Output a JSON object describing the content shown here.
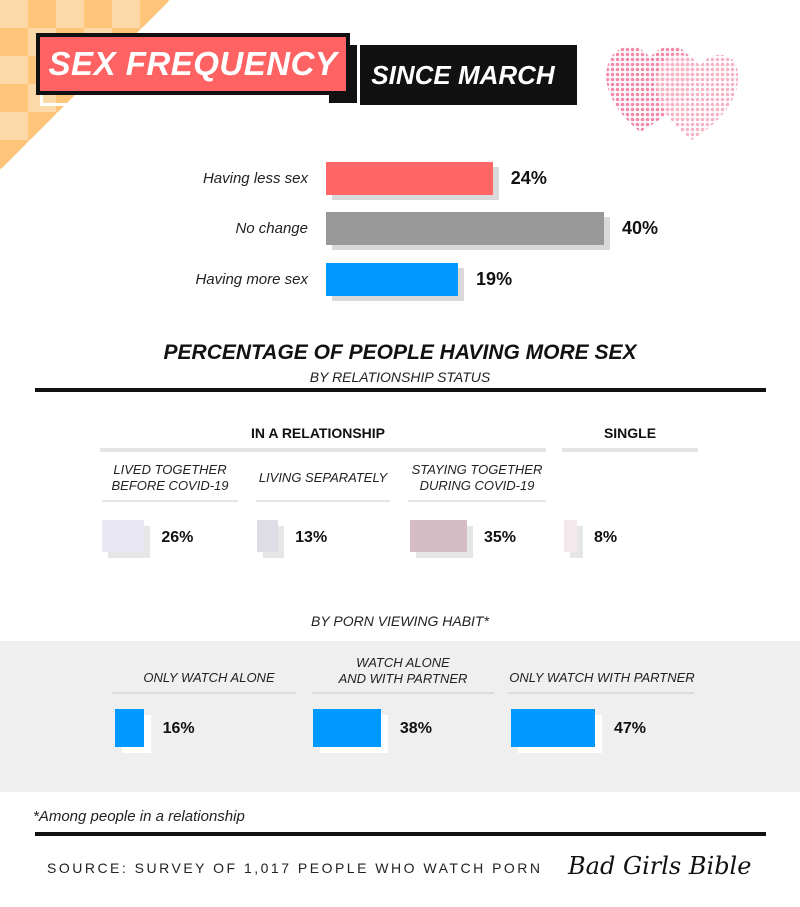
{
  "title": {
    "primary": "SEX FREQUENCY",
    "secondary": "SINCE MARCH"
  },
  "colors": {
    "less": "#ff6666",
    "no_change": "#999999",
    "more": "#0099ff",
    "lived_together": "#e9e8f2",
    "living_separately": "#dedde6",
    "staying_together": "#d6bcc4",
    "single": "#f4e8ec"
  },
  "chart_data": [
    {
      "type": "bar",
      "orientation": "horizontal",
      "categories": [
        "Having less sex",
        "No change",
        "Having more sex"
      ],
      "values": [
        24,
        40,
        19
      ],
      "value_labels": [
        "24%",
        "40%",
        "19%"
      ],
      "title": "SEX FREQUENCY SINCE MARCH"
    },
    {
      "type": "bar",
      "title": "PERCENTAGE OF PEOPLE HAVING MORE SEX",
      "subtitle": "BY RELATIONSHIP STATUS",
      "groups": [
        {
          "name": "IN A RELATIONSHIP",
          "categories": [
            "LIVED TOGETHER BEFORE COVID-19",
            "LIVING SEPARATELY",
            "STAYING TOGETHER DURING COVID-19"
          ],
          "values": [
            26,
            13,
            35
          ],
          "value_labels": [
            "26%",
            "13%",
            "35%"
          ]
        },
        {
          "name": "SINGLE",
          "categories": [
            ""
          ],
          "values": [
            8
          ],
          "value_labels": [
            "8%"
          ]
        }
      ]
    },
    {
      "type": "bar",
      "subtitle": "BY PORN VIEWING HABIT*",
      "categories": [
        "ONLY WATCH ALONE",
        "WATCH ALONE AND WITH PARTNER",
        "ONLY WATCH WITH PARTNER"
      ],
      "values": [
        16,
        38,
        47
      ],
      "value_labels": [
        "16%",
        "38%",
        "47%"
      ]
    }
  ],
  "relationship_labels": {
    "lived_l1": "LIVED TOGETHER",
    "lived_l2": "BEFORE COVID-19",
    "separately": "LIVING SEPARATELY",
    "staying_l1": "STAYING TOGETHER",
    "staying_l2": "DURING COVID-19"
  },
  "porn_labels": {
    "alone": "ONLY WATCH ALONE",
    "both_l1": "WATCH ALONE",
    "both_l2": "AND WITH PARTNER",
    "partner": "ONLY WATCH WITH PARTNER"
  },
  "footnote": "*Among people in a relationship",
  "source": "SOURCE: SURVEY OF 1,017 PEOPLE WHO WATCH PORN",
  "brand": "Bad Girls Bible"
}
